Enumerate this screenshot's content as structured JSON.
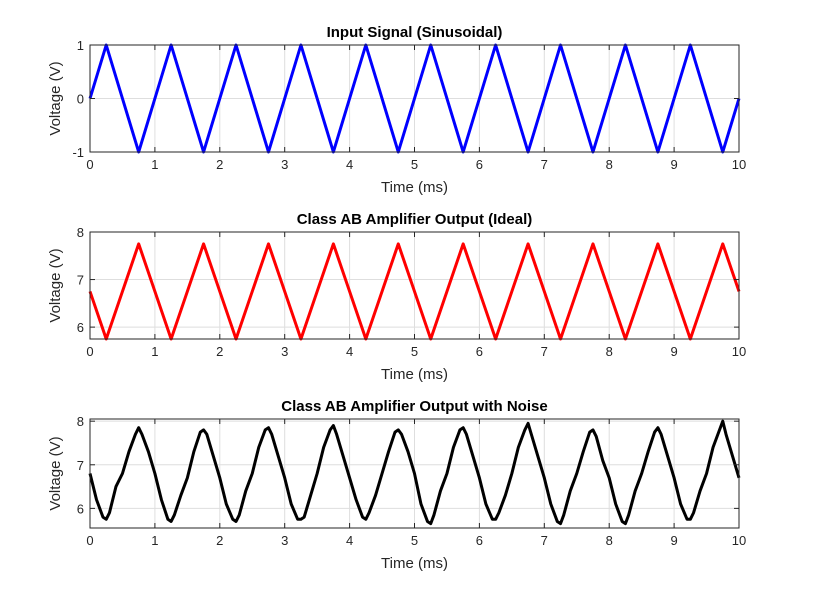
{
  "chart_data": [
    {
      "type": "line",
      "title": "Input Signal (Sinusoidal)",
      "xlabel": "Time (ms)",
      "ylabel": "Voltage (V)",
      "xlim": [
        0,
        10
      ],
      "ylim": [
        -1,
        1
      ],
      "xticks": [
        "0",
        "1",
        "2",
        "3",
        "4",
        "5",
        "6",
        "7",
        "8",
        "9",
        "10"
      ],
      "yticks": [
        "-1",
        "0",
        "1"
      ],
      "ytick_values": [
        -1,
        0,
        1
      ],
      "grid": true,
      "series": [
        {
          "color": "#0000ff",
          "x": [
            0,
            0.25,
            0.5,
            0.75,
            1,
            1.25,
            1.5,
            1.75,
            2,
            2.25,
            2.5,
            2.75,
            3,
            3.25,
            3.5,
            3.75,
            4,
            4.25,
            4.5,
            4.75,
            5,
            5.25,
            5.5,
            5.75,
            6,
            6.25,
            6.5,
            6.75,
            7,
            7.25,
            7.5,
            7.75,
            8,
            8.25,
            8.5,
            8.75,
            9,
            9.25,
            9.5,
            9.75,
            10
          ],
          "y": [
            0,
            1,
            0,
            -1,
            0,
            1,
            0,
            -1,
            0,
            1,
            0,
            -1,
            0,
            1,
            0,
            -1,
            0,
            1,
            0,
            -1,
            0,
            1,
            0,
            -1,
            0,
            1,
            0,
            -1,
            0,
            1,
            0,
            -1,
            0,
            1,
            0,
            -1,
            0,
            1,
            0,
            -1,
            0
          ]
        }
      ]
    },
    {
      "type": "line",
      "title": "Class AB Amplifier Output (Ideal)",
      "xlabel": "Time (ms)",
      "ylabel": "Voltage (V)",
      "xlim": [
        0,
        10
      ],
      "ylim": [
        5.75,
        8
      ],
      "xticks": [
        "0",
        "1",
        "2",
        "3",
        "4",
        "5",
        "6",
        "7",
        "8",
        "9",
        "10"
      ],
      "yticks": [
        "6",
        "7",
        "8"
      ],
      "ytick_values": [
        6,
        7,
        8
      ],
      "grid": true,
      "series": [
        {
          "color": "#ff0000",
          "x": [
            0,
            0.25,
            0.5,
            0.75,
            1,
            1.25,
            1.5,
            1.75,
            2,
            2.25,
            2.5,
            2.75,
            3,
            3.25,
            3.5,
            3.75,
            4,
            4.25,
            4.5,
            4.75,
            5,
            5.25,
            5.5,
            5.75,
            6,
            6.25,
            6.5,
            6.75,
            7,
            7.25,
            7.5,
            7.75,
            8,
            8.25,
            8.5,
            8.75,
            9,
            9.25,
            9.5,
            9.75,
            10
          ],
          "y": [
            6.75,
            5.75,
            6.75,
            7.75,
            6.75,
            5.75,
            6.75,
            7.75,
            6.75,
            5.75,
            6.75,
            7.75,
            6.75,
            5.75,
            6.75,
            7.75,
            6.75,
            5.75,
            6.75,
            7.75,
            6.75,
            5.75,
            6.75,
            7.75,
            6.75,
            5.75,
            6.75,
            7.75,
            6.75,
            5.75,
            6.75,
            7.75,
            6.75,
            5.75,
            6.75,
            7.75,
            6.75,
            5.75,
            6.75,
            7.75,
            6.75
          ]
        }
      ]
    },
    {
      "type": "line",
      "title": "Class AB Amplifier Output with Noise",
      "xlabel": "Time (ms)",
      "ylabel": "Voltage (V)",
      "xlim": [
        0,
        10
      ],
      "ylim": [
        5.55,
        8.05
      ],
      "xticks": [
        "0",
        "1",
        "2",
        "3",
        "4",
        "5",
        "6",
        "7",
        "8",
        "9",
        "10"
      ],
      "yticks": [
        "6",
        "7",
        "8"
      ],
      "ytick_values": [
        6,
        7,
        8
      ],
      "grid": true,
      "series": [
        {
          "color": "#000000",
          "x": [
            0,
            0.1,
            0.2,
            0.25,
            0.3,
            0.4,
            0.5,
            0.6,
            0.7,
            0.75,
            0.8,
            0.9,
            1,
            1.1,
            1.2,
            1.25,
            1.3,
            1.4,
            1.5,
            1.6,
            1.7,
            1.75,
            1.8,
            1.9,
            2,
            2.1,
            2.2,
            2.25,
            2.3,
            2.4,
            2.5,
            2.6,
            2.7,
            2.75,
            2.8,
            2.9,
            3,
            3.1,
            3.2,
            3.25,
            3.3,
            3.4,
            3.5,
            3.6,
            3.7,
            3.75,
            3.8,
            3.9,
            4,
            4.1,
            4.2,
            4.25,
            4.3,
            4.4,
            4.5,
            4.6,
            4.7,
            4.75,
            4.8,
            4.9,
            5,
            5.1,
            5.2,
            5.25,
            5.3,
            5.4,
            5.5,
            5.6,
            5.7,
            5.75,
            5.8,
            5.9,
            6,
            6.1,
            6.2,
            6.25,
            6.3,
            6.4,
            6.5,
            6.6,
            6.7,
            6.75,
            6.8,
            6.9,
            7,
            7.1,
            7.2,
            7.25,
            7.3,
            7.4,
            7.5,
            7.6,
            7.7,
            7.75,
            7.8,
            7.9,
            8,
            8.1,
            8.2,
            8.25,
            8.3,
            8.4,
            8.5,
            8.6,
            8.7,
            8.75,
            8.8,
            8.9,
            9,
            9.1,
            9.2,
            9.25,
            9.3,
            9.4,
            9.5,
            9.6,
            9.7,
            9.75,
            9.8,
            9.9,
            10
          ],
          "y": [
            6.8,
            6.2,
            5.8,
            5.75,
            5.9,
            6.5,
            6.8,
            7.3,
            7.7,
            7.85,
            7.7,
            7.3,
            6.8,
            6.2,
            5.75,
            5.7,
            5.85,
            6.3,
            6.7,
            7.3,
            7.75,
            7.8,
            7.7,
            7.2,
            6.7,
            6.1,
            5.75,
            5.7,
            5.85,
            6.4,
            6.8,
            7.4,
            7.8,
            7.85,
            7.7,
            7.2,
            6.7,
            6.1,
            5.75,
            5.75,
            5.8,
            6.3,
            6.8,
            7.4,
            7.8,
            7.9,
            7.7,
            7.2,
            6.7,
            6.2,
            5.8,
            5.75,
            5.9,
            6.3,
            6.8,
            7.3,
            7.75,
            7.8,
            7.7,
            7.3,
            6.8,
            6.1,
            5.7,
            5.65,
            5.85,
            6.4,
            6.8,
            7.4,
            7.8,
            7.85,
            7.7,
            7.2,
            6.7,
            6.1,
            5.75,
            5.75,
            5.9,
            6.3,
            6.8,
            7.4,
            7.8,
            7.95,
            7.7,
            7.2,
            6.7,
            6.1,
            5.7,
            5.65,
            5.85,
            6.4,
            6.8,
            7.3,
            7.75,
            7.8,
            7.65,
            7.1,
            6.7,
            6.1,
            5.7,
            5.65,
            5.85,
            6.4,
            6.8,
            7.3,
            7.75,
            7.85,
            7.7,
            7.2,
            6.7,
            6.1,
            5.75,
            5.75,
            5.9,
            6.4,
            6.8,
            7.4,
            7.8,
            8.0,
            7.7,
            7.2,
            6.7
          ]
        }
      ]
    }
  ]
}
